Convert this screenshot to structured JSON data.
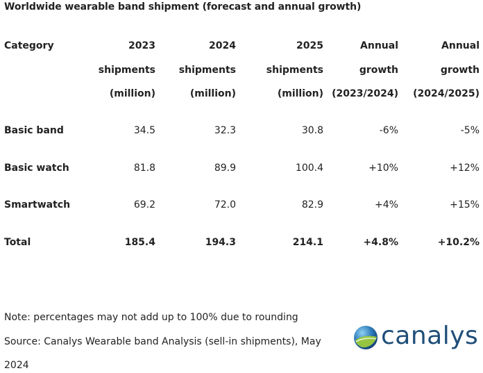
{
  "title": "Worldwide wearable band shipment (forecast and annual growth)",
  "header": {
    "category": "Category",
    "c2023": [
      "2023",
      "shipments",
      "(million)"
    ],
    "c2024": [
      "2024",
      "shipments",
      "(million)"
    ],
    "c2025": [
      "2025",
      "shipments",
      "(million)"
    ],
    "g1": [
      "Annual",
      "growth",
      "(2023/2024)"
    ],
    "g2": [
      "Annual",
      "growth",
      "(2024/2025)"
    ]
  },
  "rows": [
    {
      "category": "Basic band",
      "v2023": "34.5",
      "v2024": "32.3",
      "v2025": "30.8",
      "g1": "-6%",
      "g2": "-5%"
    },
    {
      "category": "Basic watch",
      "v2023": "81.8",
      "v2024": "89.9",
      "v2025": "100.4",
      "g1": "+10%",
      "g2": "+12%"
    },
    {
      "category": "Smartwatch",
      "v2023": "69.2",
      "v2024": "72.0",
      "v2025": "82.9",
      "g1": "+4%",
      "g2": "+15%"
    },
    {
      "category": "Total",
      "v2023": "185.4",
      "v2024": "194.3",
      "v2025": "214.1",
      "g1": "+4.8%",
      "g2": "+10.2%"
    }
  ],
  "notes": {
    "line1": "Note: percentages may not add up to 100% due to rounding",
    "line2": "Source: Canalys Wearable band Analysis (sell-in shipments), May",
    "line3": "2024"
  },
  "logo": {
    "text": "canalys",
    "color": "#1f4e79",
    "globe_colors": [
      "#1a4f8a",
      "#4fa3d8",
      "#9cc93c"
    ]
  }
}
